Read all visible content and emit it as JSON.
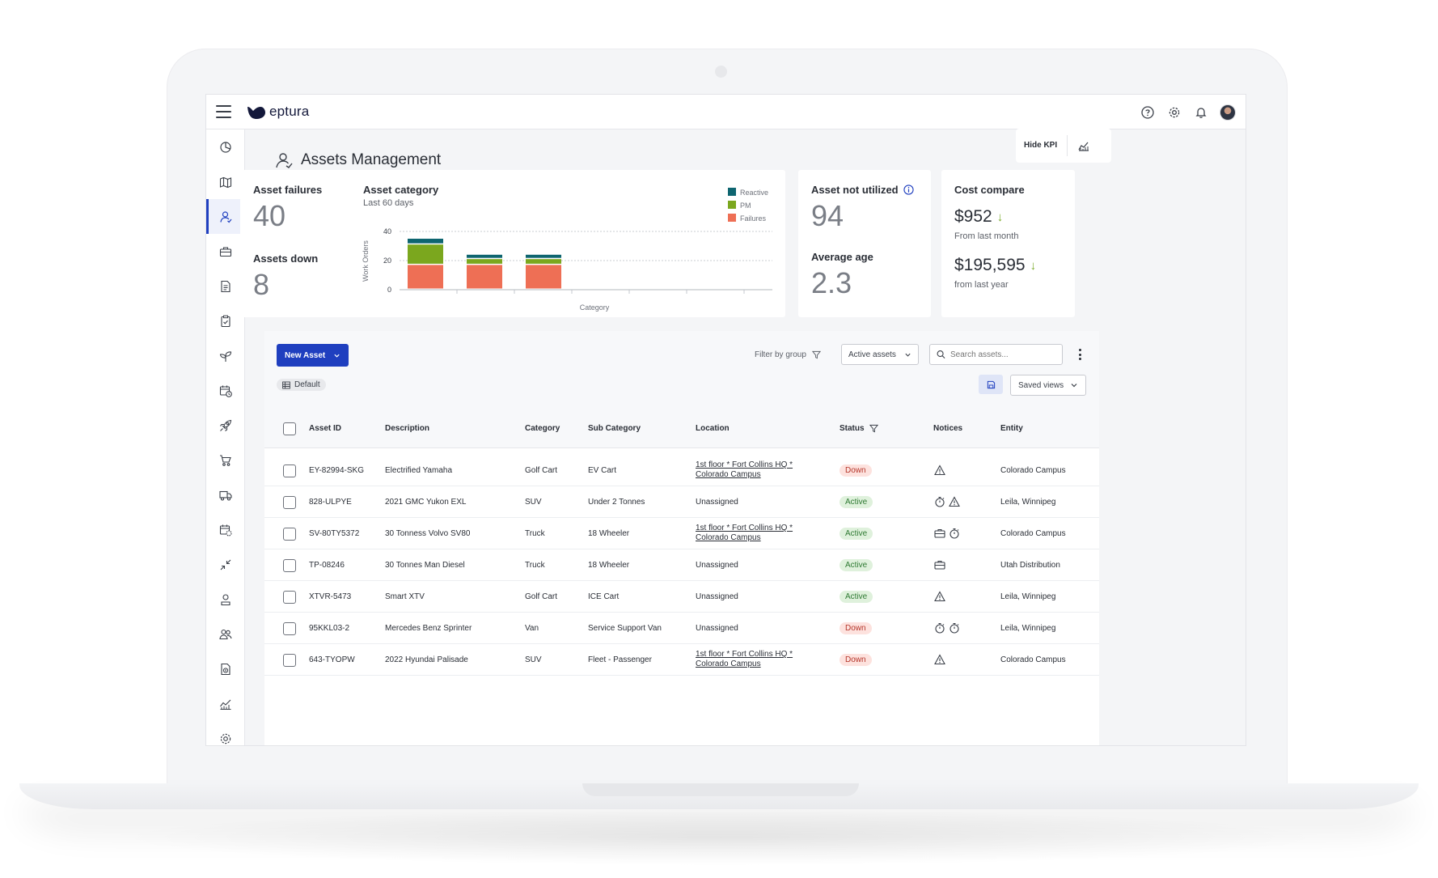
{
  "app": {
    "logo_text": "eptura",
    "brand_color": "#1f3fbf",
    "logo_color": "#13183a"
  },
  "topbar_icons": [
    "help-icon",
    "gear-icon",
    "bell-icon",
    "avatar"
  ],
  "sidenav": {
    "items": [
      {
        "icon": "dashboard-icon",
        "active": false
      },
      {
        "icon": "map-icon",
        "active": false
      },
      {
        "icon": "assets-person-icon",
        "active": true
      },
      {
        "icon": "toolbox-icon",
        "active": false
      },
      {
        "icon": "document-icon",
        "active": false
      },
      {
        "icon": "clipboard-check-icon",
        "active": false
      },
      {
        "icon": "sprout-icon",
        "active": false
      },
      {
        "icon": "calendar-clock-icon",
        "active": false
      },
      {
        "icon": "rocket-icon",
        "active": false
      },
      {
        "icon": "cart-icon",
        "active": false
      },
      {
        "icon": "truck-icon",
        "active": false
      },
      {
        "icon": "calendar-gear-icon",
        "active": false
      },
      {
        "icon": "collapse-arrows-icon",
        "active": false
      },
      {
        "icon": "user-badge-icon",
        "active": false
      },
      {
        "icon": "users-icon",
        "active": false
      },
      {
        "icon": "file-dollar-icon",
        "active": false
      },
      {
        "icon": "chart-line-icon",
        "active": false
      },
      {
        "icon": "settings-icon",
        "active": false
      }
    ]
  },
  "page": {
    "title": "Assets Management",
    "hide_kpi_label": "Hide KPI"
  },
  "kpi": {
    "asset_failures_label": "Asset failures",
    "asset_failures_value": "40",
    "assets_down_label": "Assets down",
    "assets_down_value": "8",
    "asset_not_utilized_label": "Asset not utilized",
    "asset_not_utilized_value": "94",
    "average_age_label": "Average age",
    "average_age_value": "2.3",
    "cost_compare_label": "Cost compare",
    "cost_month_value": "$952",
    "cost_month_sub": "From last month",
    "cost_year_value": "$195,595",
    "cost_year_sub": "from last year"
  },
  "chart_data": {
    "type": "bar",
    "title": "Asset category",
    "subtitle": "Last 60 days",
    "xlabel": "Category",
    "ylabel": "Work Orders",
    "ylim": [
      0,
      40
    ],
    "yticks": [
      "0",
      "20",
      "40"
    ],
    "stacked": true,
    "categories": [
      "",
      "",
      ""
    ],
    "grid": true,
    "legend_position": "top-right",
    "series": [
      {
        "name": "Failures",
        "color": "#ee6f55",
        "values": [
          17,
          17,
          17
        ]
      },
      {
        "name": "PM",
        "color": "#7ba71e",
        "values": [
          14,
          4,
          4
        ]
      },
      {
        "name": "Reactive",
        "color": "#0e6570",
        "values": [
          4,
          3,
          3
        ]
      }
    ],
    "legend": [
      "Reactive",
      "PM",
      "Failures"
    ]
  },
  "toolbar": {
    "new_asset_label": "New Asset",
    "default_view_label": "Default",
    "filter_label": "Filter by group",
    "active_assets_label": "Active assets",
    "search_placeholder": "Search assets...",
    "saved_views_label": "Saved views"
  },
  "table": {
    "columns": [
      "Asset ID",
      "Description",
      "Category",
      "Sub Category",
      "Location",
      "Status",
      "Notices",
      "Entity"
    ],
    "rows": [
      {
        "id": "EY-82994-SKG",
        "description": "Electrified Yamaha",
        "category": "Golf Cart",
        "sub": "EV Cart",
        "location": [
          "1st floor * Fort Collins HQ *",
          "Colorado Campus"
        ],
        "location_link": true,
        "status": "Down",
        "notices": [
          "warning-icon"
        ],
        "entity": "Colorado Campus"
      },
      {
        "id": "828-ULPYE",
        "description": "2021 GMC Yukon EXL",
        "category": "SUV",
        "sub": "Under 2 Tonnes",
        "location": [
          "Unassigned"
        ],
        "location_link": false,
        "status": "Active",
        "notices": [
          "stopwatch-icon",
          "warning-icon"
        ],
        "entity": "Leila, Winnipeg"
      },
      {
        "id": "SV-80TY5372",
        "description": "30 Tonness Volvo SV80",
        "category": "Truck",
        "sub": "18 Wheeler",
        "location": [
          "1st floor * Fort Collins HQ *",
          "Colorado Campus"
        ],
        "location_link": true,
        "status": "Active",
        "notices": [
          "toolbox-icon",
          "stopwatch-icon"
        ],
        "entity": "Colorado Campus"
      },
      {
        "id": "TP-08246",
        "description": "30 Tonnes Man Diesel",
        "category": "Truck",
        "sub": "18 Wheeler",
        "location": [
          "Unassigned"
        ],
        "location_link": false,
        "status": "Active",
        "notices": [
          "toolbox-icon"
        ],
        "entity": "Utah Distribution"
      },
      {
        "id": "XTVR-5473",
        "description": "Smart XTV",
        "category": "Golf Cart",
        "sub": "ICE Cart",
        "location": [
          "Unassigned"
        ],
        "location_link": false,
        "status": "Active",
        "notices": [
          "warning-icon"
        ],
        "entity": "Leila, Winnipeg"
      },
      {
        "id": "95KKL03-2",
        "description": "Mercedes Benz Sprinter",
        "category": "Van",
        "sub": "Service Support Van",
        "location": [
          "Unassigned"
        ],
        "location_link": false,
        "status": "Down",
        "notices": [
          "stopwatch-icon",
          "stopwatch-icon"
        ],
        "entity": "Leila, Winnipeg"
      },
      {
        "id": "643-TYOPW",
        "description": "2022 Hyundai Palisade",
        "category": "SUV",
        "sub": "Fleet - Passenger",
        "location": [
          "1st floor * Fort Collins HQ *",
          "Colorado Campus"
        ],
        "location_link": true,
        "status": "Down",
        "notices": [
          "warning-icon"
        ],
        "entity": "Colorado Campus"
      }
    ]
  }
}
